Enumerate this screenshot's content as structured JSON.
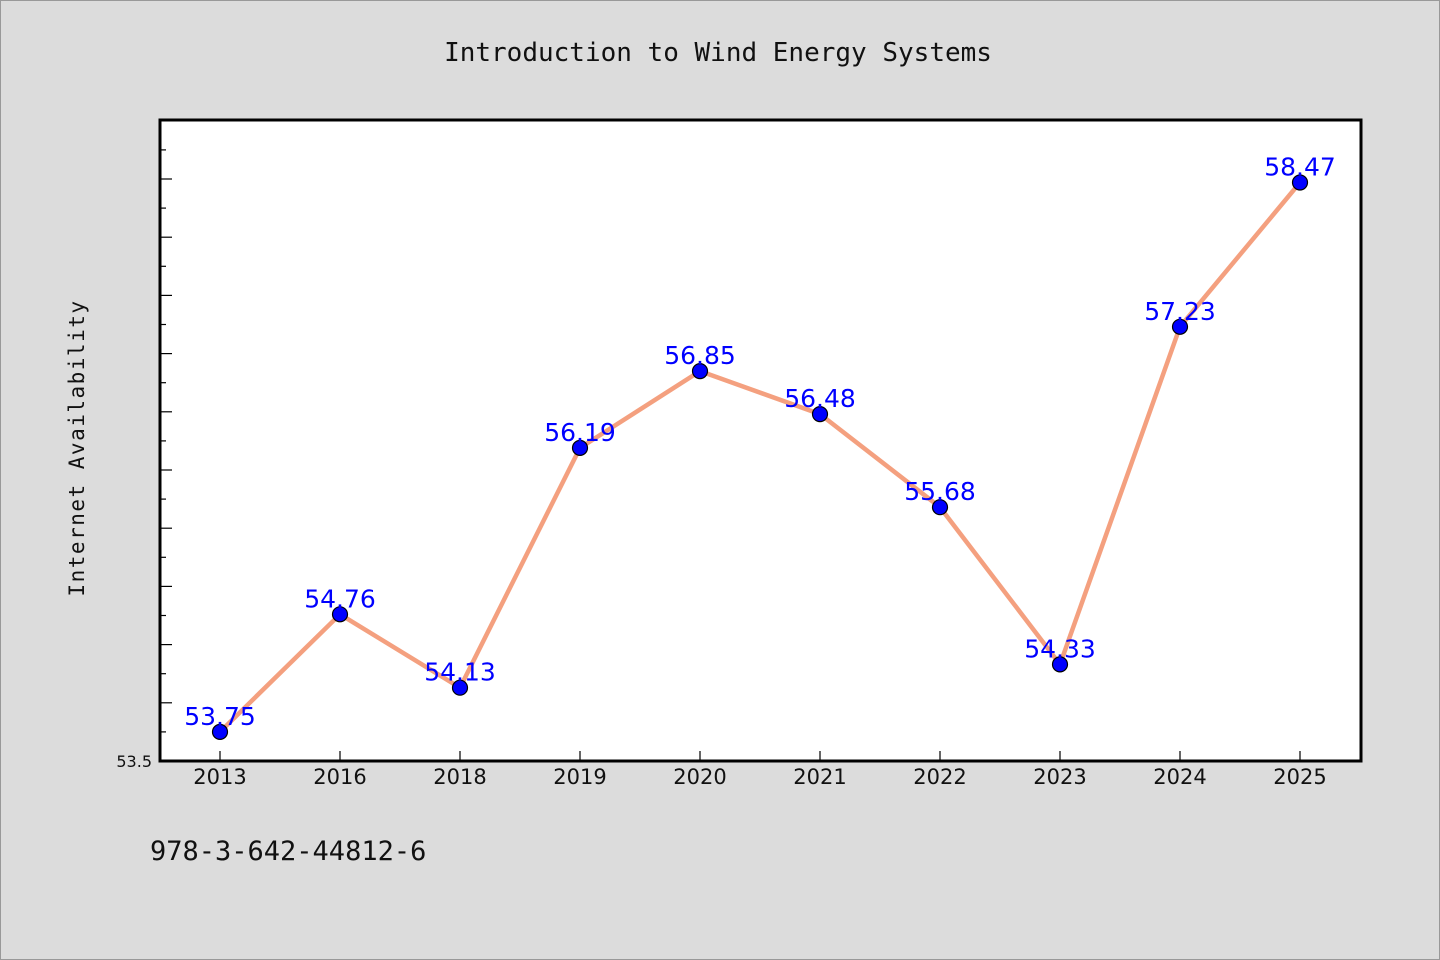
{
  "colors": {
    "background": "#dcdcdc",
    "plot_background": "#ffffff",
    "line": "#f4a07f",
    "marker": "#0000ff",
    "data_label": "#0000ff",
    "axis": "#000000"
  },
  "chart_data": {
    "type": "line",
    "title": "Introduction to Wind Energy Systems",
    "xlabel": "",
    "ylabel": "Internet Availability",
    "categories": [
      "2013",
      "2016",
      "2018",
      "2019",
      "2020",
      "2021",
      "2022",
      "2023",
      "2024",
      "2025"
    ],
    "series": [
      {
        "values": [
          53.75,
          54.76,
          54.13,
          56.19,
          56.85,
          56.48,
          55.68,
          54.33,
          57.23,
          58.47
        ]
      }
    ],
    "data_labels": [
      "53.75",
      "54.76",
      "54.13",
      "56.19",
      "56.85",
      "56.48",
      "55.68",
      "54.33",
      "57.23",
      "58.47"
    ],
    "ylim": [
      53.5,
      59.0
    ],
    "y_tick_labels": [
      "53.5"
    ],
    "y_major_tick_step": 0.5,
    "y_minor_tick_step": 0.25,
    "grid": false,
    "marker": "circle",
    "legend": "none"
  },
  "footer": {
    "isbn": "978-3-642-44812-6"
  }
}
